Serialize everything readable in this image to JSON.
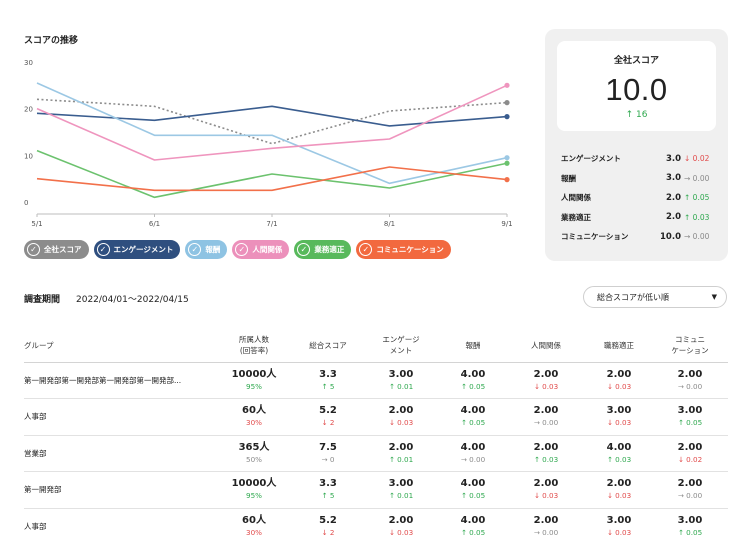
{
  "chart_title": "スコアの推移",
  "chart_data": {
    "type": "line",
    "x": [
      "5/1",
      "6/1",
      "7/1",
      "8/1",
      "9/1"
    ],
    "yticks": [
      0,
      10,
      20,
      30
    ],
    "ylim": [
      0,
      30
    ],
    "series": [
      {
        "name": "全社スコア",
        "color": "#8c8c8c",
        "dashed": true,
        "values": [
          22,
          20.5,
          12.5,
          19.5,
          21.3
        ]
      },
      {
        "name": "エンゲージメント",
        "color": "#3a5d8f",
        "values": [
          19,
          17.5,
          20.5,
          16.3,
          18.3
        ]
      },
      {
        "name": "報酬",
        "color": "#9cc8e4",
        "values": [
          25.5,
          14.3,
          14.3,
          4,
          9.5
        ]
      },
      {
        "name": "人間関係",
        "color": "#ef95be",
        "values": [
          20,
          9,
          11.5,
          13.5,
          25
        ]
      },
      {
        "name": "業務適正",
        "color": "#6cc26e",
        "values": [
          11,
          1,
          6,
          3,
          8.3
        ]
      },
      {
        "name": "コミュニケーション",
        "color": "#f2704a",
        "values": [
          5,
          2.5,
          2.5,
          7.5,
          4.8
        ]
      }
    ]
  },
  "legend": [
    {
      "label": "全社スコア",
      "color": "#8c8c8c"
    },
    {
      "label": "エンゲージメント",
      "color": "#2f4f7f"
    },
    {
      "label": "報酬",
      "color": "#8ec3e3"
    },
    {
      "label": "人間関係",
      "color": "#ec90bb"
    },
    {
      "label": "業務適正",
      "color": "#58b95c"
    },
    {
      "label": "コミュニケーション",
      "color": "#f2693f"
    }
  ],
  "score_card": {
    "label": "全社スコア",
    "value": "10.0",
    "delta": "↑ 16",
    "metrics": [
      {
        "name": "エンゲージメント",
        "value": "3.0",
        "delta": "↓ 0.02",
        "dir": "down"
      },
      {
        "name": "報酬",
        "value": "3.0",
        "delta": "→ 0.00",
        "dir": "flat"
      },
      {
        "name": "人間関係",
        "value": "2.0",
        "delta": "↑ 0.05",
        "dir": "up"
      },
      {
        "name": "業務適正",
        "value": "2.0",
        "delta": "↑ 0.03",
        "dir": "up"
      },
      {
        "name": "コミュニケーション",
        "value": "10.0",
        "delta": "→ 0.00",
        "dir": "flat"
      }
    ]
  },
  "period": {
    "label": "調査期間",
    "value": "2022/04/01〜2022/04/15"
  },
  "sort": {
    "label": "総合スコアが低い順"
  },
  "table": {
    "headers": [
      "グループ",
      "所属人数\n(回答率)",
      "総合スコア",
      "エンゲージ\nメント",
      "報酬",
      "人間関係",
      "職務適正",
      "コミュニ\nケーション"
    ],
    "rows": [
      {
        "group": "第一開発部第一開発部第一開発部第一開発部...",
        "members": "10000人",
        "rate": "95%",
        "rate_color": "green",
        "cells": [
          [
            "3.3",
            "↑ 5",
            "up"
          ],
          [
            "3.00",
            "↑ 0.01",
            "up"
          ],
          [
            "4.00",
            "↑ 0.05",
            "up"
          ],
          [
            "2.00",
            "↓ 0.03",
            "down"
          ],
          [
            "2.00",
            "↓ 0.03",
            "down"
          ],
          [
            "2.00",
            "→ 0.00",
            "flat"
          ]
        ]
      },
      {
        "group": "人事部",
        "members": "60人",
        "rate": "30%",
        "rate_color": "red",
        "cells": [
          [
            "5.2",
            "↓ 2",
            "down"
          ],
          [
            "2.00",
            "↓ 0.03",
            "down"
          ],
          [
            "4.00",
            "↑ 0.05",
            "up"
          ],
          [
            "2.00",
            "→ 0.00",
            "flat"
          ],
          [
            "3.00",
            "↓ 0.03",
            "down"
          ],
          [
            "3.00",
            "↑ 0.05",
            "up"
          ]
        ]
      },
      {
        "group": "営業部",
        "members": "365人",
        "rate": "50%",
        "rate_color": "gray",
        "cells": [
          [
            "7.5",
            "→ 0",
            "flat"
          ],
          [
            "2.00",
            "↑ 0.01",
            "up"
          ],
          [
            "4.00",
            "→ 0.00",
            "flat"
          ],
          [
            "2.00",
            "↑ 0.03",
            "up"
          ],
          [
            "4.00",
            "↑ 0.03",
            "up"
          ],
          [
            "2.00",
            "↓ 0.02",
            "down"
          ]
        ]
      },
      {
        "group": "第一開発部",
        "members": "10000人",
        "rate": "95%",
        "rate_color": "green",
        "cells": [
          [
            "3.3",
            "↑ 5",
            "up"
          ],
          [
            "3.00",
            "↑ 0.01",
            "up"
          ],
          [
            "4.00",
            "↑ 0.05",
            "up"
          ],
          [
            "2.00",
            "↓ 0.03",
            "down"
          ],
          [
            "2.00",
            "↓ 0.03",
            "down"
          ],
          [
            "2.00",
            "→ 0.00",
            "flat"
          ]
        ]
      },
      {
        "group": "人事部",
        "members": "60人",
        "rate": "30%",
        "rate_color": "red",
        "cells": [
          [
            "5.2",
            "↓ 2",
            "down"
          ],
          [
            "2.00",
            "↓ 0.03",
            "down"
          ],
          [
            "4.00",
            "↑ 0.05",
            "up"
          ],
          [
            "2.00",
            "→ 0.00",
            "flat"
          ],
          [
            "3.00",
            "↓ 0.03",
            "down"
          ],
          [
            "3.00",
            "↑ 0.05",
            "up"
          ]
        ]
      }
    ]
  }
}
